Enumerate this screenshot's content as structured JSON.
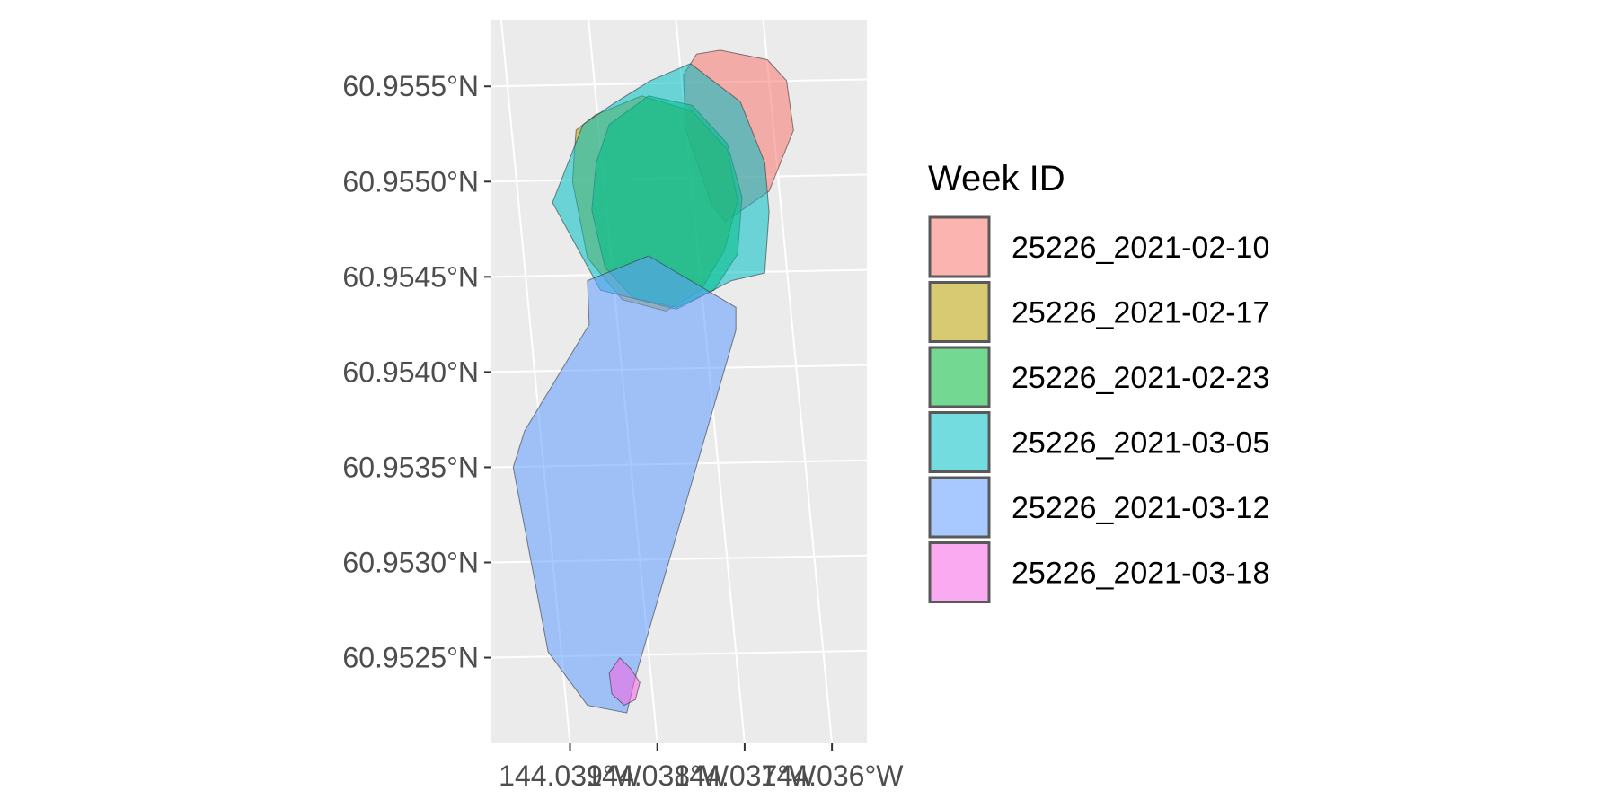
{
  "chart_data": {
    "type": "map",
    "title": "",
    "xlabel": "",
    "ylabel": "",
    "background": "#ebebeb",
    "grid": true,
    "legend": {
      "title": "Week ID",
      "position": "right"
    },
    "x_ticks": {
      "values": [
        -144.039,
        -144.038,
        -144.037,
        -144.036
      ],
      "labels": [
        "144.039°W",
        "144.038°W",
        "144.037°W",
        "144.036°W"
      ]
    },
    "y_ticks": {
      "values": [
        60.9555,
        60.955,
        60.9545,
        60.954,
        60.9535,
        60.953,
        60.9525
      ],
      "labels": [
        "60.9555°N",
        "60.9550°N",
        "60.9545°N",
        "60.9540°N",
        "60.9535°N",
        "60.9530°N",
        "60.9525°N"
      ]
    },
    "xlim": [
      -144.0399,
      -144.0356
    ],
    "ylim": [
      60.95205,
      60.95585
    ],
    "fill_opacity": 0.55,
    "series": [
      {
        "name": "25226_2021-02-10",
        "color": "#F8766D",
        "polygon": [
          [
            -144.03755,
            60.95567
          ],
          [
            -144.03728,
            60.95569
          ],
          [
            -144.03674,
            60.95564
          ],
          [
            -144.03652,
            60.95553
          ],
          [
            -144.03644,
            60.95527
          ],
          [
            -144.03672,
            60.95495
          ],
          [
            -144.03722,
            60.95479
          ],
          [
            -144.03738,
            60.95488
          ],
          [
            -144.03768,
            60.95528
          ],
          [
            -144.0377,
            60.95556
          ]
        ]
      },
      {
        "name": "25226_2021-02-17",
        "color": "#B79F00",
        "polygon": [
          [
            -144.03893,
            60.95527
          ],
          [
            -144.03871,
            60.95535
          ],
          [
            -144.03818,
            60.95545
          ],
          [
            -144.0376,
            60.95537
          ],
          [
            -144.0372,
            60.95517
          ],
          [
            -144.03708,
            60.9549
          ],
          [
            -144.03723,
            60.95464
          ],
          [
            -144.0375,
            60.95443
          ],
          [
            -144.0379,
            60.95432
          ],
          [
            -144.0384,
            60.95438
          ],
          [
            -144.0388,
            60.9546
          ],
          [
            -144.03897,
            60.955
          ],
          [
            -144.03895,
            60.95515
          ]
        ]
      },
      {
        "name": "25226_2021-02-23",
        "color": "#00BA38",
        "polygon": [
          [
            -144.03855,
            60.9553
          ],
          [
            -144.0381,
            60.95545
          ],
          [
            -144.0376,
            60.9554
          ],
          [
            -144.0372,
            60.9552
          ],
          [
            -144.03703,
            60.95492
          ],
          [
            -144.03708,
            60.95462
          ],
          [
            -144.03735,
            60.95443
          ],
          [
            -144.03778,
            60.95434
          ],
          [
            -144.03828,
            60.95439
          ],
          [
            -144.0386,
            60.95455
          ],
          [
            -144.03875,
            60.95485
          ],
          [
            -144.0387,
            60.9551
          ]
        ]
      },
      {
        "name": "25226_2021-03-05",
        "color": "#00BFC4",
        "polygon": [
          [
            -144.03808,
            60.95553
          ],
          [
            -144.03762,
            60.95562
          ],
          [
            -144.03705,
            60.95542
          ],
          [
            -144.03677,
            60.9551
          ],
          [
            -144.03672,
            60.95484
          ],
          [
            -144.03677,
            60.95452
          ],
          [
            -144.03715,
            60.95448
          ],
          [
            -144.03778,
            60.95433
          ],
          [
            -144.03865,
            60.95443
          ],
          [
            -144.0392,
            60.95489
          ],
          [
            -144.03885,
            60.9553
          ],
          [
            -144.0385,
            60.95541
          ]
        ]
      },
      {
        "name": "25226_2021-03-12",
        "color": "#619CFF",
        "polygon": [
          [
            -144.0381,
            60.95461
          ],
          [
            -144.0371,
            60.95434
          ],
          [
            -144.0371,
            60.95422
          ],
          [
            -144.03825,
            60.9524
          ],
          [
            -144.03835,
            60.95221
          ],
          [
            -144.0388,
            60.95225
          ],
          [
            -144.03925,
            60.95253
          ],
          [
            -144.03965,
            60.9535
          ],
          [
            -144.03952,
            60.95369
          ],
          [
            -144.03878,
            60.95425
          ],
          [
            -144.0388,
            60.95448
          ]
        ]
      },
      {
        "name": "25226_2021-03-18",
        "color": "#F564E3",
        "polygon": [
          [
            -144.03843,
            60.9525
          ],
          [
            -144.0383,
            60.95244
          ],
          [
            -144.0382,
            60.95237
          ],
          [
            -144.03825,
            60.95228
          ],
          [
            -144.03838,
            60.95225
          ],
          [
            -144.03852,
            60.95231
          ],
          [
            -144.03855,
            60.95242
          ]
        ]
      }
    ]
  }
}
